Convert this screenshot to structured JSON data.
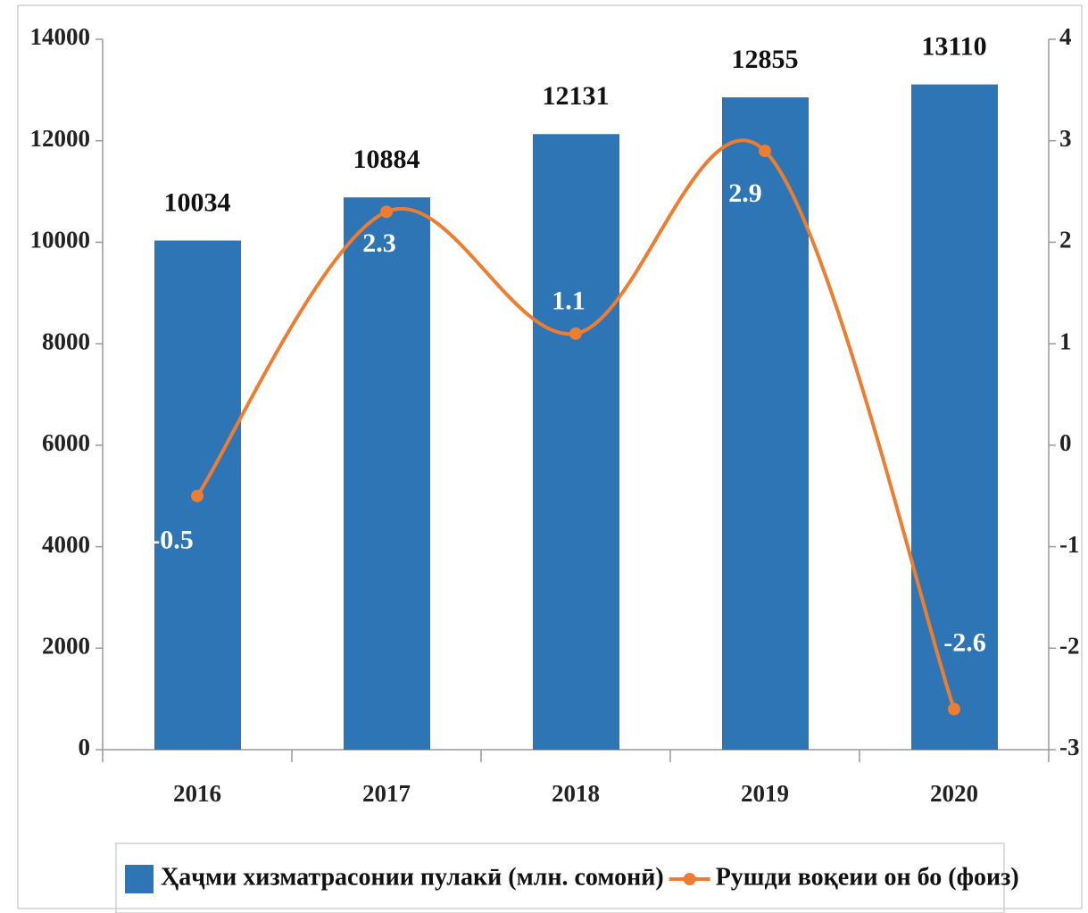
{
  "chart_data": {
    "type": "bar",
    "categories": [
      "2016",
      "2017",
      "2018",
      "2019",
      "2020"
    ],
    "series": [
      {
        "name": "Ҳаҷми хизматрасонии пулакӣ (млн. сомонӣ)",
        "color": "#2e75b6",
        "type": "bar",
        "values": [
          10034,
          10884,
          12131,
          12855,
          13110
        ]
      },
      {
        "name": "Рушди воқеии он бо (фоиз)",
        "color": "#ed7d31",
        "type": "line",
        "axis": "y2",
        "values": [
          -0.5,
          2.3,
          1.1,
          2.9,
          -2.6
        ]
      }
    ],
    "ylim": [
      0,
      14000
    ],
    "yticks": [
      0,
      2000,
      4000,
      6000,
      8000,
      10000,
      12000,
      14000
    ],
    "y2lim": [
      -3,
      4
    ],
    "y2ticks": [
      -3,
      -2,
      -1,
      0,
      1,
      2,
      3,
      4
    ],
    "legend": "bottom"
  }
}
